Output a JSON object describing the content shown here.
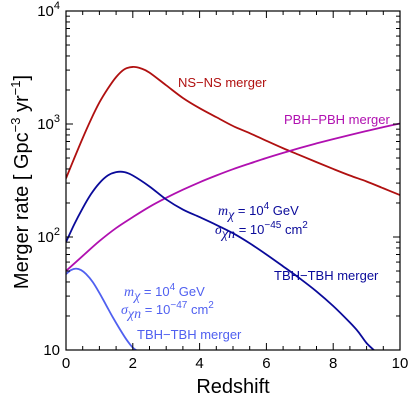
{
  "chart_data": {
    "type": "line",
    "title": "",
    "xlabel": "Redshift",
    "ylabel_parts": {
      "main": "Merger rate [ Gpc",
      "exp1": "−3",
      "mid": " yr",
      "exp2": "−1",
      "end": "]"
    },
    "xlim": [
      0,
      10
    ],
    "ylim": [
      10,
      10000
    ],
    "yscale": "log",
    "grid": false,
    "x_ticks": [
      0,
      2,
      4,
      6,
      8,
      10
    ],
    "y_ticks": [
      {
        "value": 10,
        "base": "10",
        "exp": ""
      },
      {
        "value": 100,
        "base": "10",
        "exp": "2"
      },
      {
        "value": 1000,
        "base": "10",
        "exp": "3"
      },
      {
        "value": 10000,
        "base": "10",
        "exp": "4"
      }
    ],
    "series": [
      {
        "name": "NS−NS merger",
        "color": "#b01010",
        "x": [
          0,
          0.25,
          0.5,
          0.75,
          1.0,
          1.25,
          1.5,
          1.75,
          2.0,
          2.25,
          2.5,
          3.0,
          3.5,
          4.0,
          4.5,
          5.0,
          5.5,
          6.0,
          6.5,
          7.0,
          7.5,
          8.0,
          8.5,
          9.0,
          9.5,
          10.0
        ],
        "y": [
          330,
          500,
          750,
          1100,
          1550,
          2050,
          2600,
          3050,
          3200,
          3100,
          2850,
          2200,
          1700,
          1380,
          1150,
          960,
          830,
          710,
          610,
          530,
          460,
          400,
          350,
          310,
          270,
          235
        ]
      },
      {
        "name": "PBH−PBH merger",
        "color": "#b010b0",
        "x": [
          0,
          0.5,
          1.0,
          1.5,
          2.0,
          2.5,
          3.0,
          3.5,
          4.0,
          4.5,
          5.0,
          5.5,
          6.0,
          6.5,
          7.0,
          7.5,
          8.0,
          8.5,
          9.0,
          9.5,
          10.0
        ],
        "y": [
          50,
          68,
          92,
          120,
          150,
          185,
          222,
          262,
          305,
          350,
          398,
          447,
          500,
          555,
          613,
          673,
          735,
          800,
          868,
          938,
          1010
        ]
      },
      {
        "name": "TBH−TBH merger",
        "color": "#0a0a9a",
        "x": [
          0,
          0.25,
          0.5,
          0.75,
          1.0,
          1.25,
          1.5,
          1.75,
          2.0,
          2.5,
          3.0,
          3.5,
          4.0,
          4.5,
          5.0,
          5.5,
          6.0,
          6.5,
          7.0,
          7.5,
          8.0,
          8.5,
          8.75,
          9.0,
          9.25
        ],
        "y": [
          90,
          130,
          180,
          240,
          300,
          350,
          375,
          375,
          350,
          280,
          215,
          175,
          150,
          128,
          108,
          88,
          70,
          55,
          43,
          33,
          24.5,
          17.5,
          14.5,
          11.5,
          9.8
        ]
      },
      {
        "name": "TBH−TBH merger",
        "color": "#5060f0",
        "x": [
          0,
          0.15,
          0.3,
          0.45,
          0.6,
          0.8,
          1.0,
          1.2,
          1.4,
          1.6,
          1.8,
          2.0,
          2.15
        ],
        "y": [
          47,
          51,
          52.5,
          51,
          47,
          40,
          32,
          25,
          19.5,
          15.5,
          12.5,
          10.5,
          9.8
        ]
      }
    ],
    "annotations": {
      "ns_label": "NS−NS merger",
      "pbh_label": "PBH−PBH merger",
      "tbh1_label": "TBH−TBH merger",
      "tbh2_label": "TBH−TBH merger",
      "tbh1_params": {
        "m_sym": "m",
        "m_sub": "χ",
        "m_val": " = 10",
        "m_exp": "4",
        "m_unit": " GeV",
        "s_sym": "σ",
        "s_sub": "χn",
        "s_val": " = 10",
        "s_exp": "−45",
        "s_unit": " cm",
        "s_unit_exp": "2"
      },
      "tbh2_params": {
        "m_sym": "m",
        "m_sub": "χ",
        "m_val": " = 10",
        "m_exp": "4",
        "m_unit": " GeV",
        "s_sym": "σ",
        "s_sub": "χn",
        "s_val": " = 10",
        "s_exp": "−47",
        "s_unit": " cm",
        "s_unit_exp": "2"
      }
    }
  }
}
